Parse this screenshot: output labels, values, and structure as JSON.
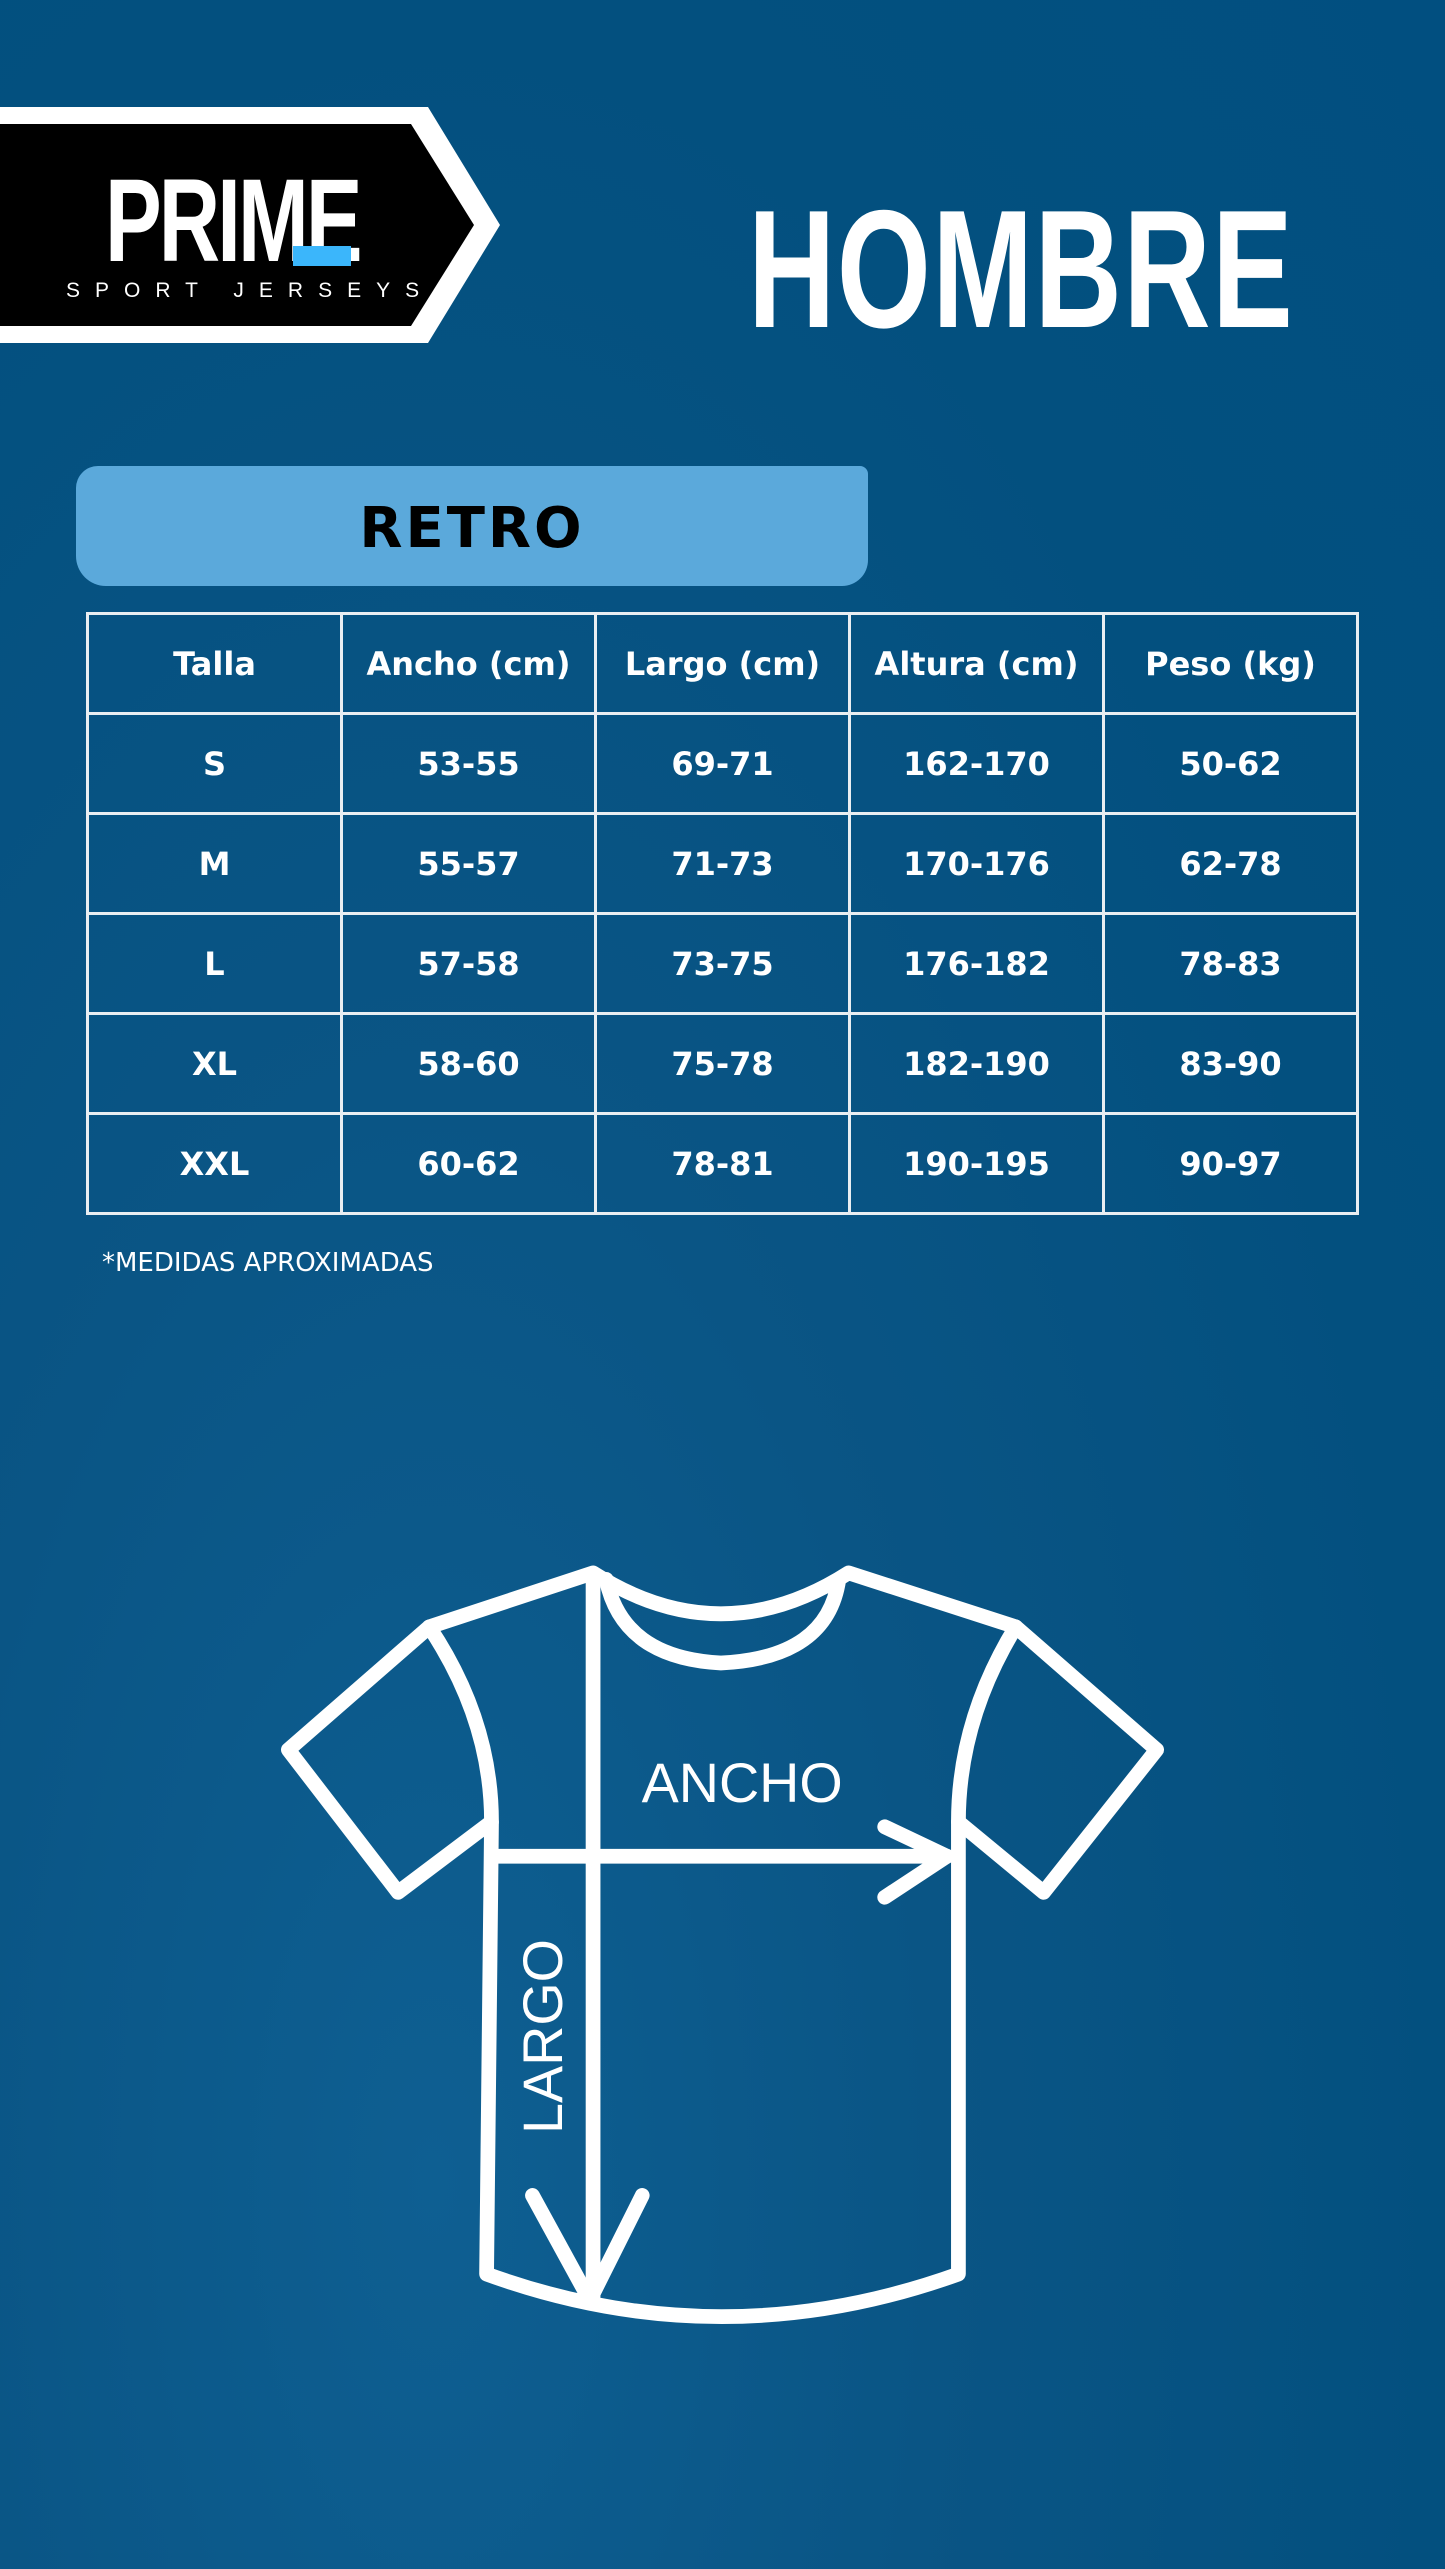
{
  "logo": {
    "name": "PRIME",
    "tagline": "SPORT JERSEYS",
    "accent": "#3bb6fb"
  },
  "title": "HOMBRE",
  "section": "RETRO",
  "table": {
    "headers": [
      "Talla",
      "Ancho (cm)",
      "Largo (cm)",
      "Altura (cm)",
      "Peso (kg)"
    ],
    "rows": [
      [
        "S",
        "53-55",
        "69-71",
        "162-170",
        "50-62"
      ],
      [
        "M",
        "55-57",
        "71-73",
        "170-176",
        "62-78"
      ],
      [
        "L",
        "57-58",
        "73-75",
        "176-182",
        "78-83"
      ],
      [
        "XL",
        "58-60",
        "75-78",
        "182-190",
        "83-90"
      ],
      [
        "XXL",
        "60-62",
        "78-81",
        "190-195",
        "90-97"
      ]
    ]
  },
  "note": "*MEDIDAS APROXIMADAS",
  "diagram": {
    "width_label": "ANCHO",
    "length_label": "LARGO"
  },
  "colors": {
    "background": "#03507f",
    "banner": "#5ba9db"
  }
}
